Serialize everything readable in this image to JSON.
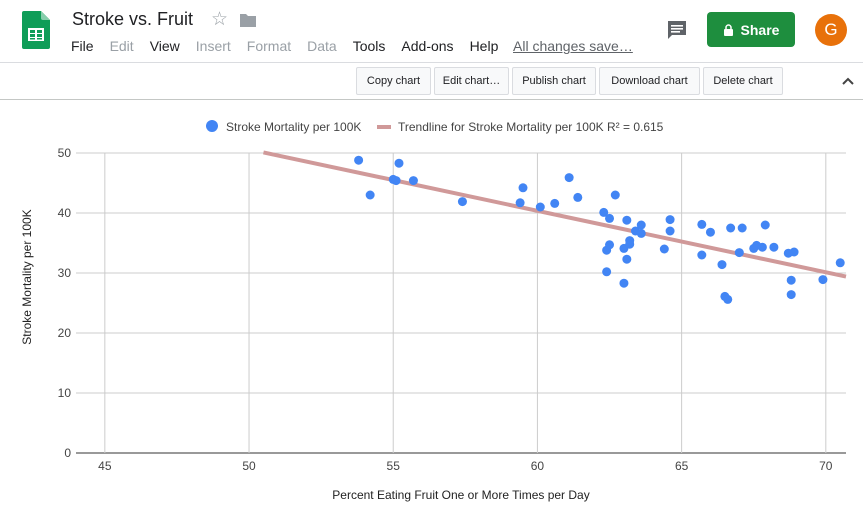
{
  "app": {
    "title": "Stroke vs. Fruit",
    "save_status": "All changes save…",
    "share_label": "Share",
    "avatar_initial": "G",
    "brand_color": "#0f9d58",
    "share_color": "#1e8e3e",
    "avatar_color": "#e8710a"
  },
  "menu": [
    {
      "label": "File",
      "enabled": true
    },
    {
      "label": "Edit",
      "enabled": false
    },
    {
      "label": "View",
      "enabled": true
    },
    {
      "label": "Insert",
      "enabled": false
    },
    {
      "label": "Format",
      "enabled": false
    },
    {
      "label": "Data",
      "enabled": false
    },
    {
      "label": "Tools",
      "enabled": true
    },
    {
      "label": "Add-ons",
      "enabled": true
    },
    {
      "label": "Help",
      "enabled": true
    }
  ],
  "icons": {
    "logo": "sheets-logo-icon",
    "star": "star-icon",
    "folder": "folder-icon",
    "comment": "comment-icon",
    "lock": "lock-icon",
    "collapse": "chevron-up-icon"
  },
  "chart_toolbar": {
    "copy": "Copy chart",
    "edit": "Edit chart…",
    "publish": "Publish chart",
    "download": "Download chart",
    "delete": "Delete chart"
  },
  "chart_data": {
    "type": "scatter",
    "xlabel": "Percent Eating Fruit One or More Times per Day",
    "ylabel": "Stroke Mortality per 100K",
    "xlim": [
      44,
      70.7
    ],
    "ylim": [
      0,
      50
    ],
    "x_ticks": [
      45,
      50,
      55,
      60,
      65,
      70
    ],
    "y_ticks": [
      0,
      10,
      20,
      30,
      40,
      50
    ],
    "grid": true,
    "legend_position": "top",
    "series": [
      {
        "name": "Stroke Mortality per 100K",
        "color": "#4285f4",
        "points": [
          [
            53.8,
            48.8
          ],
          [
            54.2,
            43.0
          ],
          [
            55.0,
            45.6
          ],
          [
            55.1,
            45.4
          ],
          [
            55.2,
            48.3
          ],
          [
            55.7,
            45.4
          ],
          [
            57.4,
            41.9
          ],
          [
            59.4,
            41.7
          ],
          [
            59.5,
            44.2
          ],
          [
            60.1,
            41.0
          ],
          [
            60.6,
            41.6
          ],
          [
            61.1,
            45.9
          ],
          [
            61.4,
            42.6
          ],
          [
            62.3,
            40.1
          ],
          [
            62.4,
            30.2
          ],
          [
            62.4,
            33.8
          ],
          [
            62.5,
            39.1
          ],
          [
            62.5,
            34.7
          ],
          [
            62.7,
            43.0
          ],
          [
            63.0,
            28.3
          ],
          [
            63.0,
            34.1
          ],
          [
            63.1,
            38.8
          ],
          [
            63.1,
            32.3
          ],
          [
            63.2,
            35.4
          ],
          [
            63.2,
            34.8
          ],
          [
            63.4,
            37.0
          ],
          [
            63.6,
            38.0
          ],
          [
            63.6,
            36.6
          ],
          [
            64.4,
            34.0
          ],
          [
            64.6,
            37.0
          ],
          [
            64.6,
            38.9
          ],
          [
            65.7,
            38.1
          ],
          [
            65.7,
            33.0
          ],
          [
            66.0,
            36.8
          ],
          [
            66.4,
            31.4
          ],
          [
            66.5,
            26.1
          ],
          [
            66.6,
            25.6
          ],
          [
            66.7,
            37.5
          ],
          [
            67.0,
            33.4
          ],
          [
            67.1,
            37.5
          ],
          [
            67.5,
            34.1
          ],
          [
            67.6,
            34.6
          ],
          [
            67.8,
            34.3
          ],
          [
            67.9,
            38.0
          ],
          [
            68.2,
            34.3
          ],
          [
            68.7,
            33.3
          ],
          [
            68.8,
            28.8
          ],
          [
            68.8,
            26.4
          ],
          [
            68.9,
            33.5
          ],
          [
            69.9,
            28.9
          ],
          [
            70.5,
            31.7
          ]
        ]
      }
    ],
    "trendline": {
      "name": "Trendline for Stroke Mortality per 100K R² = 0.615",
      "color": "#d09999",
      "x": [
        50.5,
        70.7
      ],
      "y": [
        50.1,
        29.4
      ]
    }
  }
}
